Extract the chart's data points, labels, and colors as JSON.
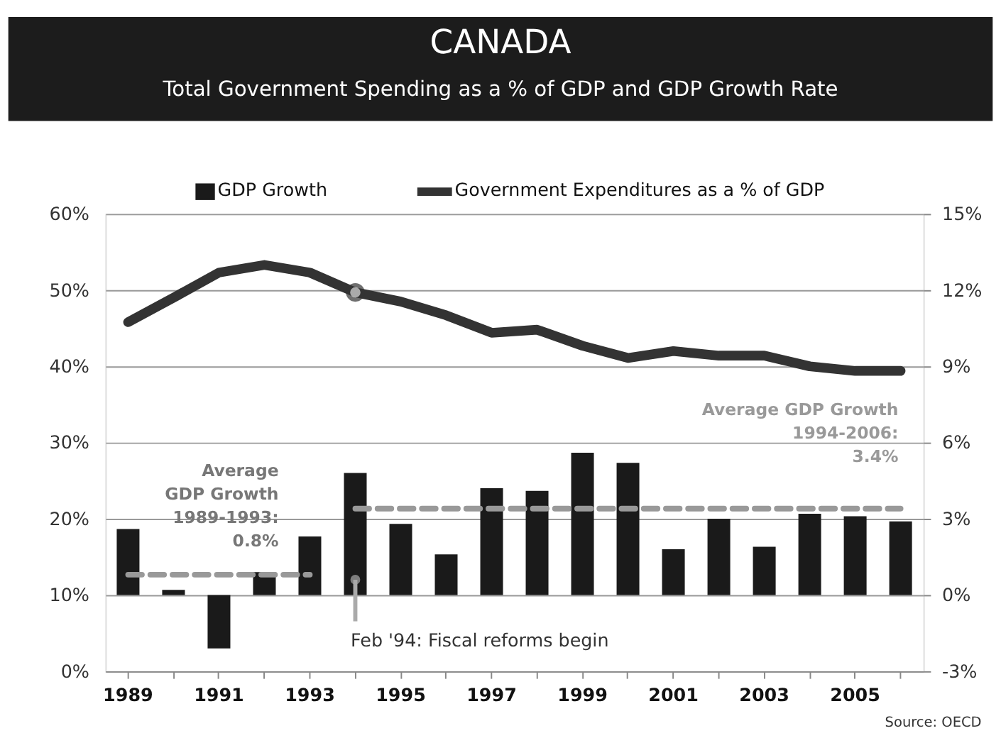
{
  "chart_data": {
    "type": "bar",
    "title": "CANADA",
    "subtitle": "Total Government Spending as a % of GDP and GDP Growth Rate",
    "categories": [
      "1989",
      null,
      "1991",
      null,
      "1993",
      null,
      "1995",
      null,
      "1997",
      null,
      "1999",
      null,
      "2001",
      null,
      "2003",
      null,
      "2005",
      null
    ],
    "series": [
      {
        "name": "GDP Growth",
        "axis": "y2",
        "color": "#1a1a1a",
        "values": [
          2.6,
          0.2,
          -2.1,
          0.9,
          2.3,
          4.8,
          2.8,
          1.6,
          4.2,
          4.1,
          5.6,
          5.2,
          1.8,
          3.0,
          1.9,
          3.2,
          3.1,
          2.9
        ]
      },
      {
        "name": "Government Expenditures as a % of GDP",
        "type": "line",
        "color": "#333333",
        "values": [
          45.8,
          49.0,
          52.3,
          53.3,
          52.3,
          49.7,
          48.5,
          46.7,
          44.4,
          44.8,
          42.7,
          41.1,
          42.0,
          41.4,
          41.4,
          40.0,
          39.4,
          39.4
        ]
      },
      {
        "type": "line",
        "axis": "y2",
        "color": "#999999",
        "line_style": "dashed",
        "values": [
          0.8,
          0.8,
          0.8,
          0.8,
          0.8,
          null,
          null,
          null,
          null,
          null,
          null,
          null,
          null,
          null,
          null,
          null,
          null,
          null
        ]
      },
      {
        "type": "line",
        "axis": "y2",
        "color": "#999999",
        "line_style": "dashed",
        "values": [
          null,
          null,
          null,
          null,
          null,
          3.4,
          3.4,
          3.4,
          3.4,
          3.4,
          3.4,
          3.4,
          3.4,
          3.4,
          3.4,
          3.4,
          3.4,
          3.4
        ]
      }
    ],
    "ylim": [
      0,
      60
    ],
    "yticks": [
      {
        "value": 0,
        "label": "0%"
      },
      {
        "value": 10,
        "label": "10%"
      },
      {
        "value": 20,
        "label": "20%"
      },
      {
        "value": 30,
        "label": "30%"
      },
      {
        "value": 40,
        "label": "40%"
      },
      {
        "value": 50,
        "label": "50%"
      },
      {
        "value": 60,
        "label": "60%"
      }
    ],
    "y2lim": [
      -3,
      15
    ],
    "y2ticks": [
      {
        "value": -3,
        "label": "-3%"
      },
      {
        "value": 0,
        "label": "0%"
      },
      {
        "value": 3,
        "label": "3%"
      },
      {
        "value": 6,
        "label": "6%"
      },
      {
        "value": 9,
        "label": "9%"
      },
      {
        "value": 12,
        "label": "12%"
      },
      {
        "value": 15,
        "label": "15%"
      }
    ],
    "grid": "y",
    "legend": "top",
    "annotations": [
      "Average\nGDP Growth\n1989-1993:\n0.8%",
      "Average GDP Growth\n1994-2006:\n3.4%",
      "Feb '94: Fiscal reforms begin",
      "Source: OECD"
    ]
  }
}
